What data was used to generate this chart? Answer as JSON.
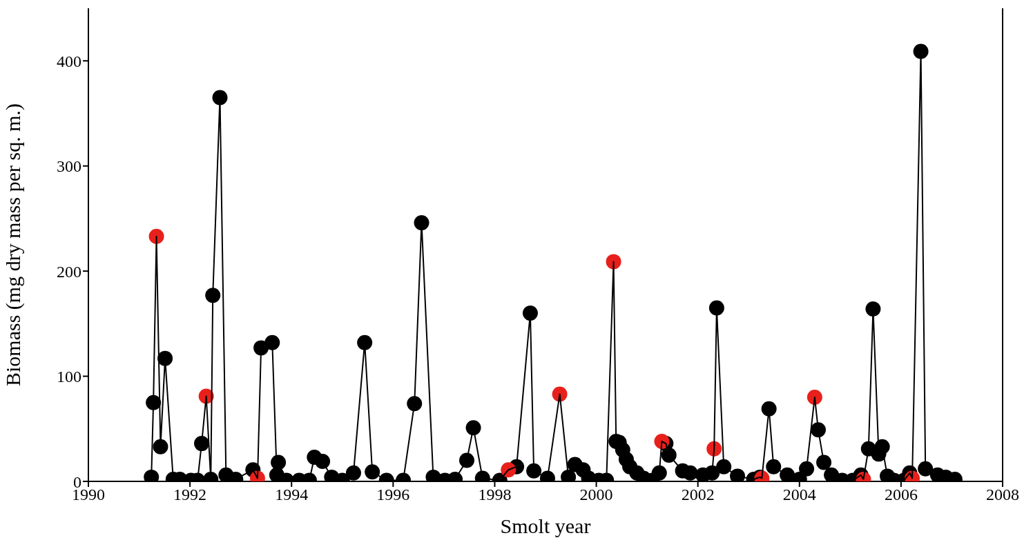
{
  "chart_data": {
    "type": "line",
    "xlabel": "Smolt year",
    "ylabel": "Biomass (mg dry mass per sq. m.)",
    "xlim": [
      1990,
      2008
    ],
    "xticks": [
      1990,
      1992,
      1994,
      1996,
      1998,
      2000,
      2002,
      2004,
      2006,
      2008
    ],
    "ylim": [
      0,
      450
    ],
    "yticks": [
      0,
      100,
      200,
      300,
      400
    ],
    "grid": false,
    "series": [
      {
        "marker": "none",
        "color": "#000000",
        "x": [
          1991.24,
          1991.28,
          1991.34,
          1991.42,
          1991.51,
          1991.67,
          1991.8,
          1992.02,
          1992.15,
          1992.23,
          1992.32,
          1992.41,
          1992.45,
          1992.59,
          1992.71,
          1992.9,
          1993.24,
          1993.33,
          1993.4,
          1993.62,
          1993.71,
          1993.74,
          1993.9,
          1994.15,
          1994.35,
          1994.45,
          1994.61,
          1994.79,
          1995.0,
          1995.22,
          1995.44,
          1995.59,
          1995.87,
          1996.2,
          1996.42,
          1996.56,
          1996.79,
          1997.02,
          1997.22,
          1997.45,
          1997.58,
          1997.76,
          1998.1,
          1998.27,
          1998.43,
          1998.7,
          1998.77,
          1999.04,
          1999.28,
          1999.45,
          1999.58,
          1999.74,
          1999.85,
          2000.05,
          2000.2,
          2000.34,
          2000.39,
          2000.45,
          2000.52,
          2000.59,
          2000.66,
          2000.8,
          2000.93,
          2001.1,
          2001.24,
          2001.29,
          2001.37,
          2001.43,
          2001.7,
          2001.85,
          2002.1,
          2002.28,
          2002.32,
          2002.37,
          2002.51,
          2002.78,
          2003.1,
          2003.22,
          2003.26,
          2003.4,
          2003.49,
          2003.76,
          2004.0,
          2004.14,
          2004.3,
          2004.37,
          2004.48,
          2004.63,
          2004.84,
          2005.05,
          2005.21,
          2005.26,
          2005.36,
          2005.45,
          2005.56,
          2005.63,
          2005.73,
          2005.86,
          2006.06,
          2006.17,
          2006.22,
          2006.39,
          2006.48,
          2006.72,
          2006.88,
          2007.06
        ],
        "values": [
          4,
          75,
          233,
          33,
          117,
          2,
          2,
          1,
          1,
          36,
          81,
          2,
          177,
          365,
          6,
          2,
          11,
          3,
          127,
          132,
          6,
          18,
          1,
          1,
          1,
          23,
          19,
          4,
          1,
          8,
          132,
          9,
          1,
          1,
          74,
          246,
          4,
          1,
          2,
          20,
          51,
          3,
          1,
          11,
          14,
          160,
          10,
          3,
          83,
          4,
          16,
          11,
          3,
          1,
          1,
          209,
          38,
          37,
          30,
          21,
          14,
          8,
          3,
          1,
          8,
          38,
          36,
          25,
          10,
          8,
          6,
          8,
          31,
          165,
          14,
          5,
          2,
          4,
          3,
          69,
          14,
          6,
          2,
          12,
          80,
          49,
          18,
          6,
          1,
          1,
          6,
          2,
          31,
          164,
          26,
          33,
          5,
          1,
          1,
          8,
          3,
          409,
          12,
          6,
          4,
          2
        ]
      },
      {
        "type": "scatter",
        "marker": "circle",
        "color": "#000000",
        "x": [
          1991.24,
          1991.28,
          1991.42,
          1991.51,
          1991.67,
          1991.8,
          1992.02,
          1992.15,
          1992.23,
          1992.41,
          1992.45,
          1992.59,
          1992.71,
          1992.9,
          1993.24,
          1993.4,
          1993.62,
          1993.71,
          1993.74,
          1993.9,
          1994.15,
          1994.35,
          1994.45,
          1994.61,
          1994.79,
          1995.0,
          1995.22,
          1995.44,
          1995.59,
          1995.87,
          1996.2,
          1996.42,
          1996.56,
          1996.79,
          1997.02,
          1997.22,
          1997.45,
          1997.58,
          1997.76,
          1998.1,
          1998.43,
          1998.7,
          1998.77,
          1999.04,
          1999.45,
          1999.58,
          1999.74,
          1999.85,
          2000.05,
          2000.2,
          2000.39,
          2000.45,
          2000.52,
          2000.59,
          2000.66,
          2000.8,
          2000.93,
          2001.1,
          2001.24,
          2001.37,
          2001.43,
          2001.7,
          2001.85,
          2002.1,
          2002.28,
          2002.37,
          2002.51,
          2002.78,
          2003.1,
          2003.22,
          2003.4,
          2003.49,
          2003.76,
          2004.0,
          2004.14,
          2004.37,
          2004.48,
          2004.63,
          2004.84,
          2005.05,
          2005.21,
          2005.36,
          2005.45,
          2005.56,
          2005.63,
          2005.73,
          2005.86,
          2006.06,
          2006.17,
          2006.39,
          2006.48,
          2006.72,
          2006.88,
          2007.06
        ],
        "values": [
          4,
          75,
          33,
          117,
          2,
          2,
          1,
          1,
          36,
          2,
          177,
          365,
          6,
          2,
          11,
          127,
          132,
          6,
          18,
          1,
          1,
          1,
          23,
          19,
          4,
          1,
          8,
          132,
          9,
          1,
          1,
          74,
          246,
          4,
          1,
          2,
          20,
          51,
          3,
          1,
          14,
          160,
          10,
          3,
          4,
          16,
          11,
          3,
          1,
          1,
          38,
          37,
          30,
          21,
          14,
          8,
          3,
          1,
          8,
          36,
          25,
          10,
          8,
          6,
          8,
          165,
          14,
          5,
          2,
          4,
          69,
          14,
          6,
          2,
          12,
          49,
          18,
          6,
          1,
          1,
          6,
          31,
          164,
          26,
          33,
          5,
          1,
          1,
          8,
          409,
          12,
          6,
          4,
          2
        ]
      },
      {
        "type": "scatter",
        "marker": "circle",
        "color": "#e8201c",
        "x": [
          1991.34,
          1992.32,
          1993.33,
          1998.27,
          1999.28,
          2000.34,
          2001.29,
          2002.32,
          2003.26,
          2004.3,
          2005.26,
          2006.22
        ],
        "values": [
          233,
          81,
          3,
          11,
          83,
          209,
          38,
          31,
          3,
          80,
          2,
          3
        ]
      }
    ]
  }
}
